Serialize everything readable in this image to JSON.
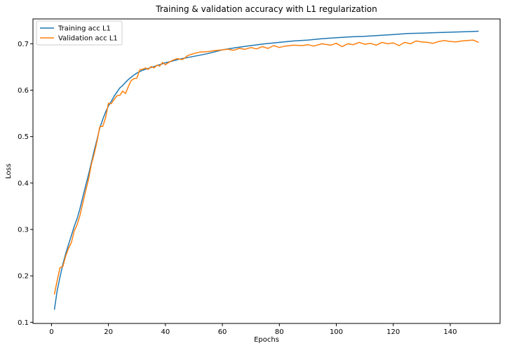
{
  "chart_data": {
    "type": "line",
    "title": "Training & validation accuracy with L1 regularization",
    "xlabel": "Epochs",
    "ylabel": "Loss",
    "xlim": [
      -6.5,
      157.5
    ],
    "ylim": [
      0.0975,
      0.7535
    ],
    "xticks": [
      0,
      20,
      40,
      60,
      80,
      100,
      120,
      140
    ],
    "yticks": [
      0.1,
      0.2,
      0.3,
      0.4,
      0.5,
      0.6,
      0.7
    ],
    "grid": false,
    "legend_position": "top-left",
    "series": [
      {
        "name": "Training acc L1",
        "color": "#1f77b4",
        "points": [
          [
            1,
            0.127
          ],
          [
            2,
            0.168
          ],
          [
            3,
            0.198
          ],
          [
            4,
            0.225
          ],
          [
            5,
            0.248
          ],
          [
            6,
            0.268
          ],
          [
            7,
            0.287
          ],
          [
            8,
            0.307
          ],
          [
            9,
            0.323
          ],
          [
            10,
            0.345
          ],
          [
            11,
            0.37
          ],
          [
            12,
            0.394
          ],
          [
            13,
            0.418
          ],
          [
            14,
            0.444
          ],
          [
            15,
            0.47
          ],
          [
            16,
            0.494
          ],
          [
            17,
            0.519
          ],
          [
            18,
            0.537
          ],
          [
            19,
            0.553
          ],
          [
            20,
            0.566
          ],
          [
            21,
            0.576
          ],
          [
            22,
            0.587
          ],
          [
            23,
            0.596
          ],
          [
            24,
            0.605
          ],
          [
            25,
            0.61
          ],
          [
            26,
            0.617
          ],
          [
            27,
            0.623
          ],
          [
            28,
            0.628
          ],
          [
            29,
            0.633
          ],
          [
            30,
            0.637
          ],
          [
            31,
            0.64
          ],
          [
            32,
            0.643
          ],
          [
            33,
            0.645
          ],
          [
            34,
            0.647
          ],
          [
            35,
            0.649
          ],
          [
            36,
            0.651
          ],
          [
            37,
            0.653
          ],
          [
            38,
            0.655
          ],
          [
            39,
            0.657
          ],
          [
            40,
            0.659
          ],
          [
            42,
            0.662
          ],
          [
            45,
            0.667
          ],
          [
            50,
            0.673
          ],
          [
            55,
            0.679
          ],
          [
            60,
            0.687
          ],
          [
            65,
            0.692
          ],
          [
            70,
            0.696
          ],
          [
            75,
            0.7
          ],
          [
            80,
            0.703
          ],
          [
            85,
            0.706
          ],
          [
            90,
            0.708
          ],
          [
            95,
            0.711
          ],
          [
            100,
            0.713
          ],
          [
            105,
            0.715
          ],
          [
            110,
            0.716
          ],
          [
            115,
            0.718
          ],
          [
            120,
            0.72
          ],
          [
            125,
            0.722
          ],
          [
            130,
            0.723
          ],
          [
            135,
            0.724
          ],
          [
            140,
            0.725
          ],
          [
            145,
            0.726
          ],
          [
            150,
            0.727
          ]
        ]
      },
      {
        "name": "Validation acc L1",
        "color": "#ff7f0e",
        "points": [
          [
            1,
            0.16
          ],
          [
            2,
            0.19
          ],
          [
            3,
            0.218
          ],
          [
            4,
            0.22
          ],
          [
            5,
            0.243
          ],
          [
            6,
            0.26
          ],
          [
            7,
            0.272
          ],
          [
            8,
            0.297
          ],
          [
            9,
            0.31
          ],
          [
            10,
            0.33
          ],
          [
            11,
            0.357
          ],
          [
            12,
            0.383
          ],
          [
            13,
            0.408
          ],
          [
            14,
            0.44
          ],
          [
            15,
            0.463
          ],
          [
            16,
            0.49
          ],
          [
            17,
            0.522
          ],
          [
            18,
            0.522
          ],
          [
            19,
            0.541
          ],
          [
            20,
            0.572
          ],
          [
            21,
            0.571
          ],
          [
            22,
            0.58
          ],
          [
            23,
            0.588
          ],
          [
            24,
            0.589
          ],
          [
            25,
            0.598
          ],
          [
            26,
            0.593
          ],
          [
            27,
            0.608
          ],
          [
            28,
            0.621
          ],
          [
            29,
            0.625
          ],
          [
            30,
            0.626
          ],
          [
            31,
            0.644
          ],
          [
            32,
            0.645
          ],
          [
            33,
            0.648
          ],
          [
            34,
            0.645
          ],
          [
            35,
            0.651
          ],
          [
            36,
            0.648
          ],
          [
            37,
            0.654
          ],
          [
            38,
            0.652
          ],
          [
            39,
            0.66
          ],
          [
            40,
            0.655
          ],
          [
            42,
            0.663
          ],
          [
            44,
            0.668
          ],
          [
            46,
            0.666
          ],
          [
            48,
            0.675
          ],
          [
            50,
            0.679
          ],
          [
            52,
            0.682
          ],
          [
            55,
            0.683
          ],
          [
            57,
            0.685
          ],
          [
            60,
            0.687
          ],
          [
            62,
            0.688
          ],
          [
            64,
            0.686
          ],
          [
            66,
            0.69
          ],
          [
            68,
            0.688
          ],
          [
            70,
            0.692
          ],
          [
            72,
            0.689
          ],
          [
            74,
            0.694
          ],
          [
            76,
            0.69
          ],
          [
            78,
            0.696
          ],
          [
            80,
            0.692
          ],
          [
            82,
            0.695
          ],
          [
            85,
            0.697
          ],
          [
            88,
            0.696
          ],
          [
            90,
            0.698
          ],
          [
            92,
            0.695
          ],
          [
            95,
            0.7
          ],
          [
            98,
            0.697
          ],
          [
            100,
            0.701
          ],
          [
            102,
            0.694
          ],
          [
            104,
            0.7
          ],
          [
            106,
            0.698
          ],
          [
            108,
            0.703
          ],
          [
            110,
            0.699
          ],
          [
            112,
            0.701
          ],
          [
            114,
            0.697
          ],
          [
            116,
            0.703
          ],
          [
            118,
            0.7
          ],
          [
            120,
            0.702
          ],
          [
            122,
            0.696
          ],
          [
            124,
            0.703
          ],
          [
            126,
            0.7
          ],
          [
            128,
            0.706
          ],
          [
            130,
            0.704
          ],
          [
            132,
            0.703
          ],
          [
            134,
            0.701
          ],
          [
            136,
            0.705
          ],
          [
            138,
            0.707
          ],
          [
            140,
            0.705
          ],
          [
            142,
            0.704
          ],
          [
            144,
            0.706
          ],
          [
            146,
            0.707
          ],
          [
            148,
            0.708
          ],
          [
            150,
            0.703
          ]
        ]
      }
    ]
  }
}
